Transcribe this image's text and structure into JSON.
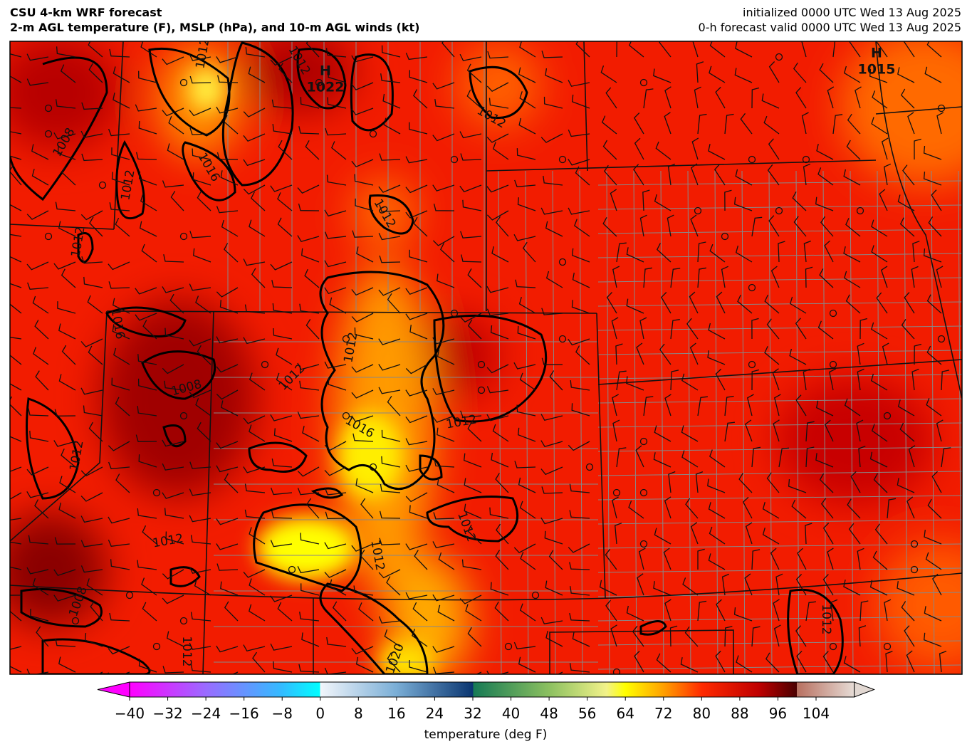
{
  "header": {
    "title": "CSU 4-km WRF forecast",
    "subtitle": "2-m AGL temperature (F), MSLP (hPa), and 10-m AGL winds (kt)",
    "initialized": "initialized 0000 UTC Wed 13 Aug 2025",
    "valid": "0-h forecast valid 0000 UTC Wed 13 Aug 2025"
  },
  "map": {
    "contour_labels": [
      1008,
      1012,
      1012,
      1016,
      1008,
      1012,
      1012,
      1008,
      1012,
      1016,
      1012,
      1012,
      1012,
      1012,
      1012,
      1016,
      1012,
      1012,
      1012,
      1012,
      1020,
      1012
    ],
    "pressure_centers": [
      {
        "label": "H",
        "value": 1022
      },
      {
        "label": "H",
        "value": 1015
      }
    ]
  },
  "colorbar": {
    "range": [
      -40,
      112
    ],
    "ticks": [
      {
        "value": -40,
        "label": "−40"
      },
      {
        "value": -32,
        "label": "−32"
      },
      {
        "value": -24,
        "label": "−24"
      },
      {
        "value": -16,
        "label": "−16"
      },
      {
        "value": -8,
        "label": "−8"
      },
      0,
      8,
      16,
      24,
      32,
      40,
      48,
      56,
      64,
      72,
      80,
      88,
      96,
      104
    ],
    "label": "temperature (deg F)"
  }
}
